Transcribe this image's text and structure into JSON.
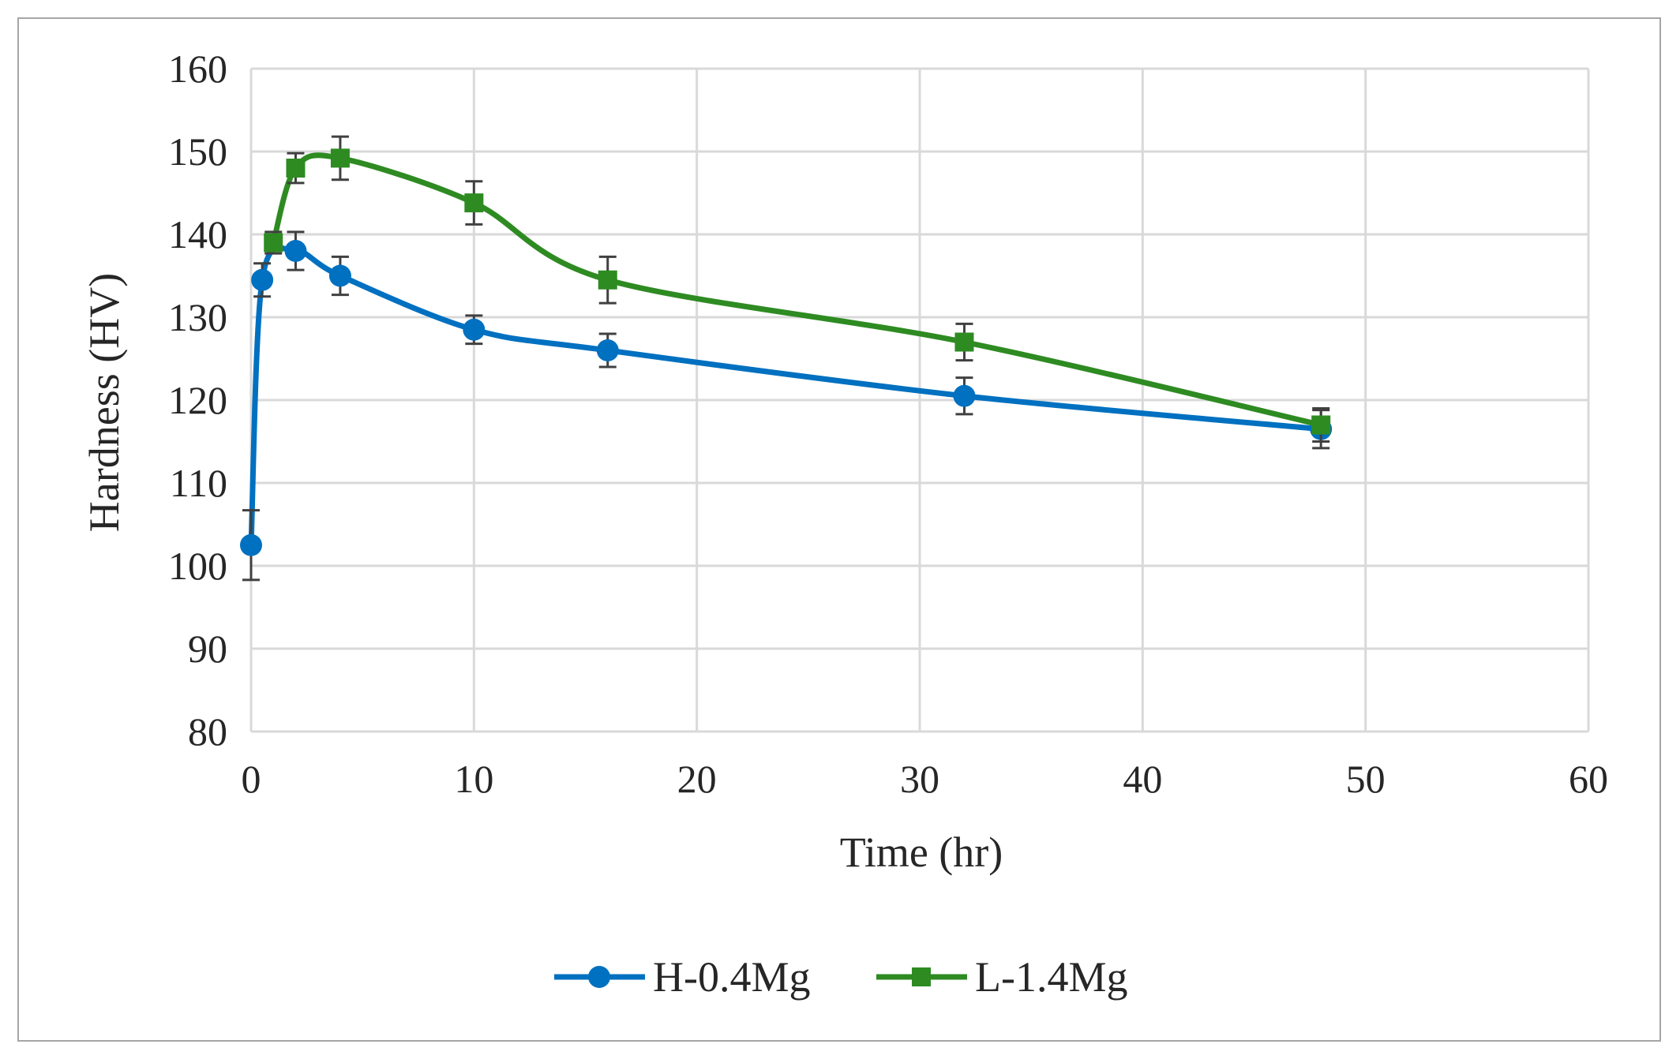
{
  "chart_data": {
    "type": "line",
    "title": "",
    "xlabel": "Time (hr)",
    "ylabel": "Hardness (HV)",
    "xlim": [
      0,
      60
    ],
    "ylim": [
      80,
      160
    ],
    "xticks": [
      0,
      10,
      20,
      30,
      40,
      50,
      60
    ],
    "yticks": [
      80,
      90,
      100,
      110,
      120,
      130,
      140,
      150,
      160
    ],
    "grid": true,
    "legend_position": "bottom",
    "series": [
      {
        "name": "H-0.4Mg",
        "color": "#0070c0",
        "marker": "circle",
        "smooth": true,
        "x": [
          0,
          0.5,
          2,
          4,
          10,
          16,
          32,
          48
        ],
        "y": [
          102.5,
          134.5,
          138,
          135,
          128.5,
          126,
          120.5,
          116.5
        ],
        "error": [
          4.2,
          2,
          2.3,
          2.3,
          1.7,
          2,
          2.2,
          2.3
        ]
      },
      {
        "name": "L-1.4Mg",
        "color": "#2e8b22",
        "marker": "square",
        "smooth": true,
        "x": [
          1,
          2,
          4,
          10,
          16,
          32,
          48
        ],
        "y": [
          139,
          148,
          149.2,
          143.8,
          134.5,
          127,
          117
        ],
        "error": [
          1.3,
          1.8,
          2.6,
          2.6,
          2.8,
          2.2,
          2
        ]
      }
    ]
  }
}
